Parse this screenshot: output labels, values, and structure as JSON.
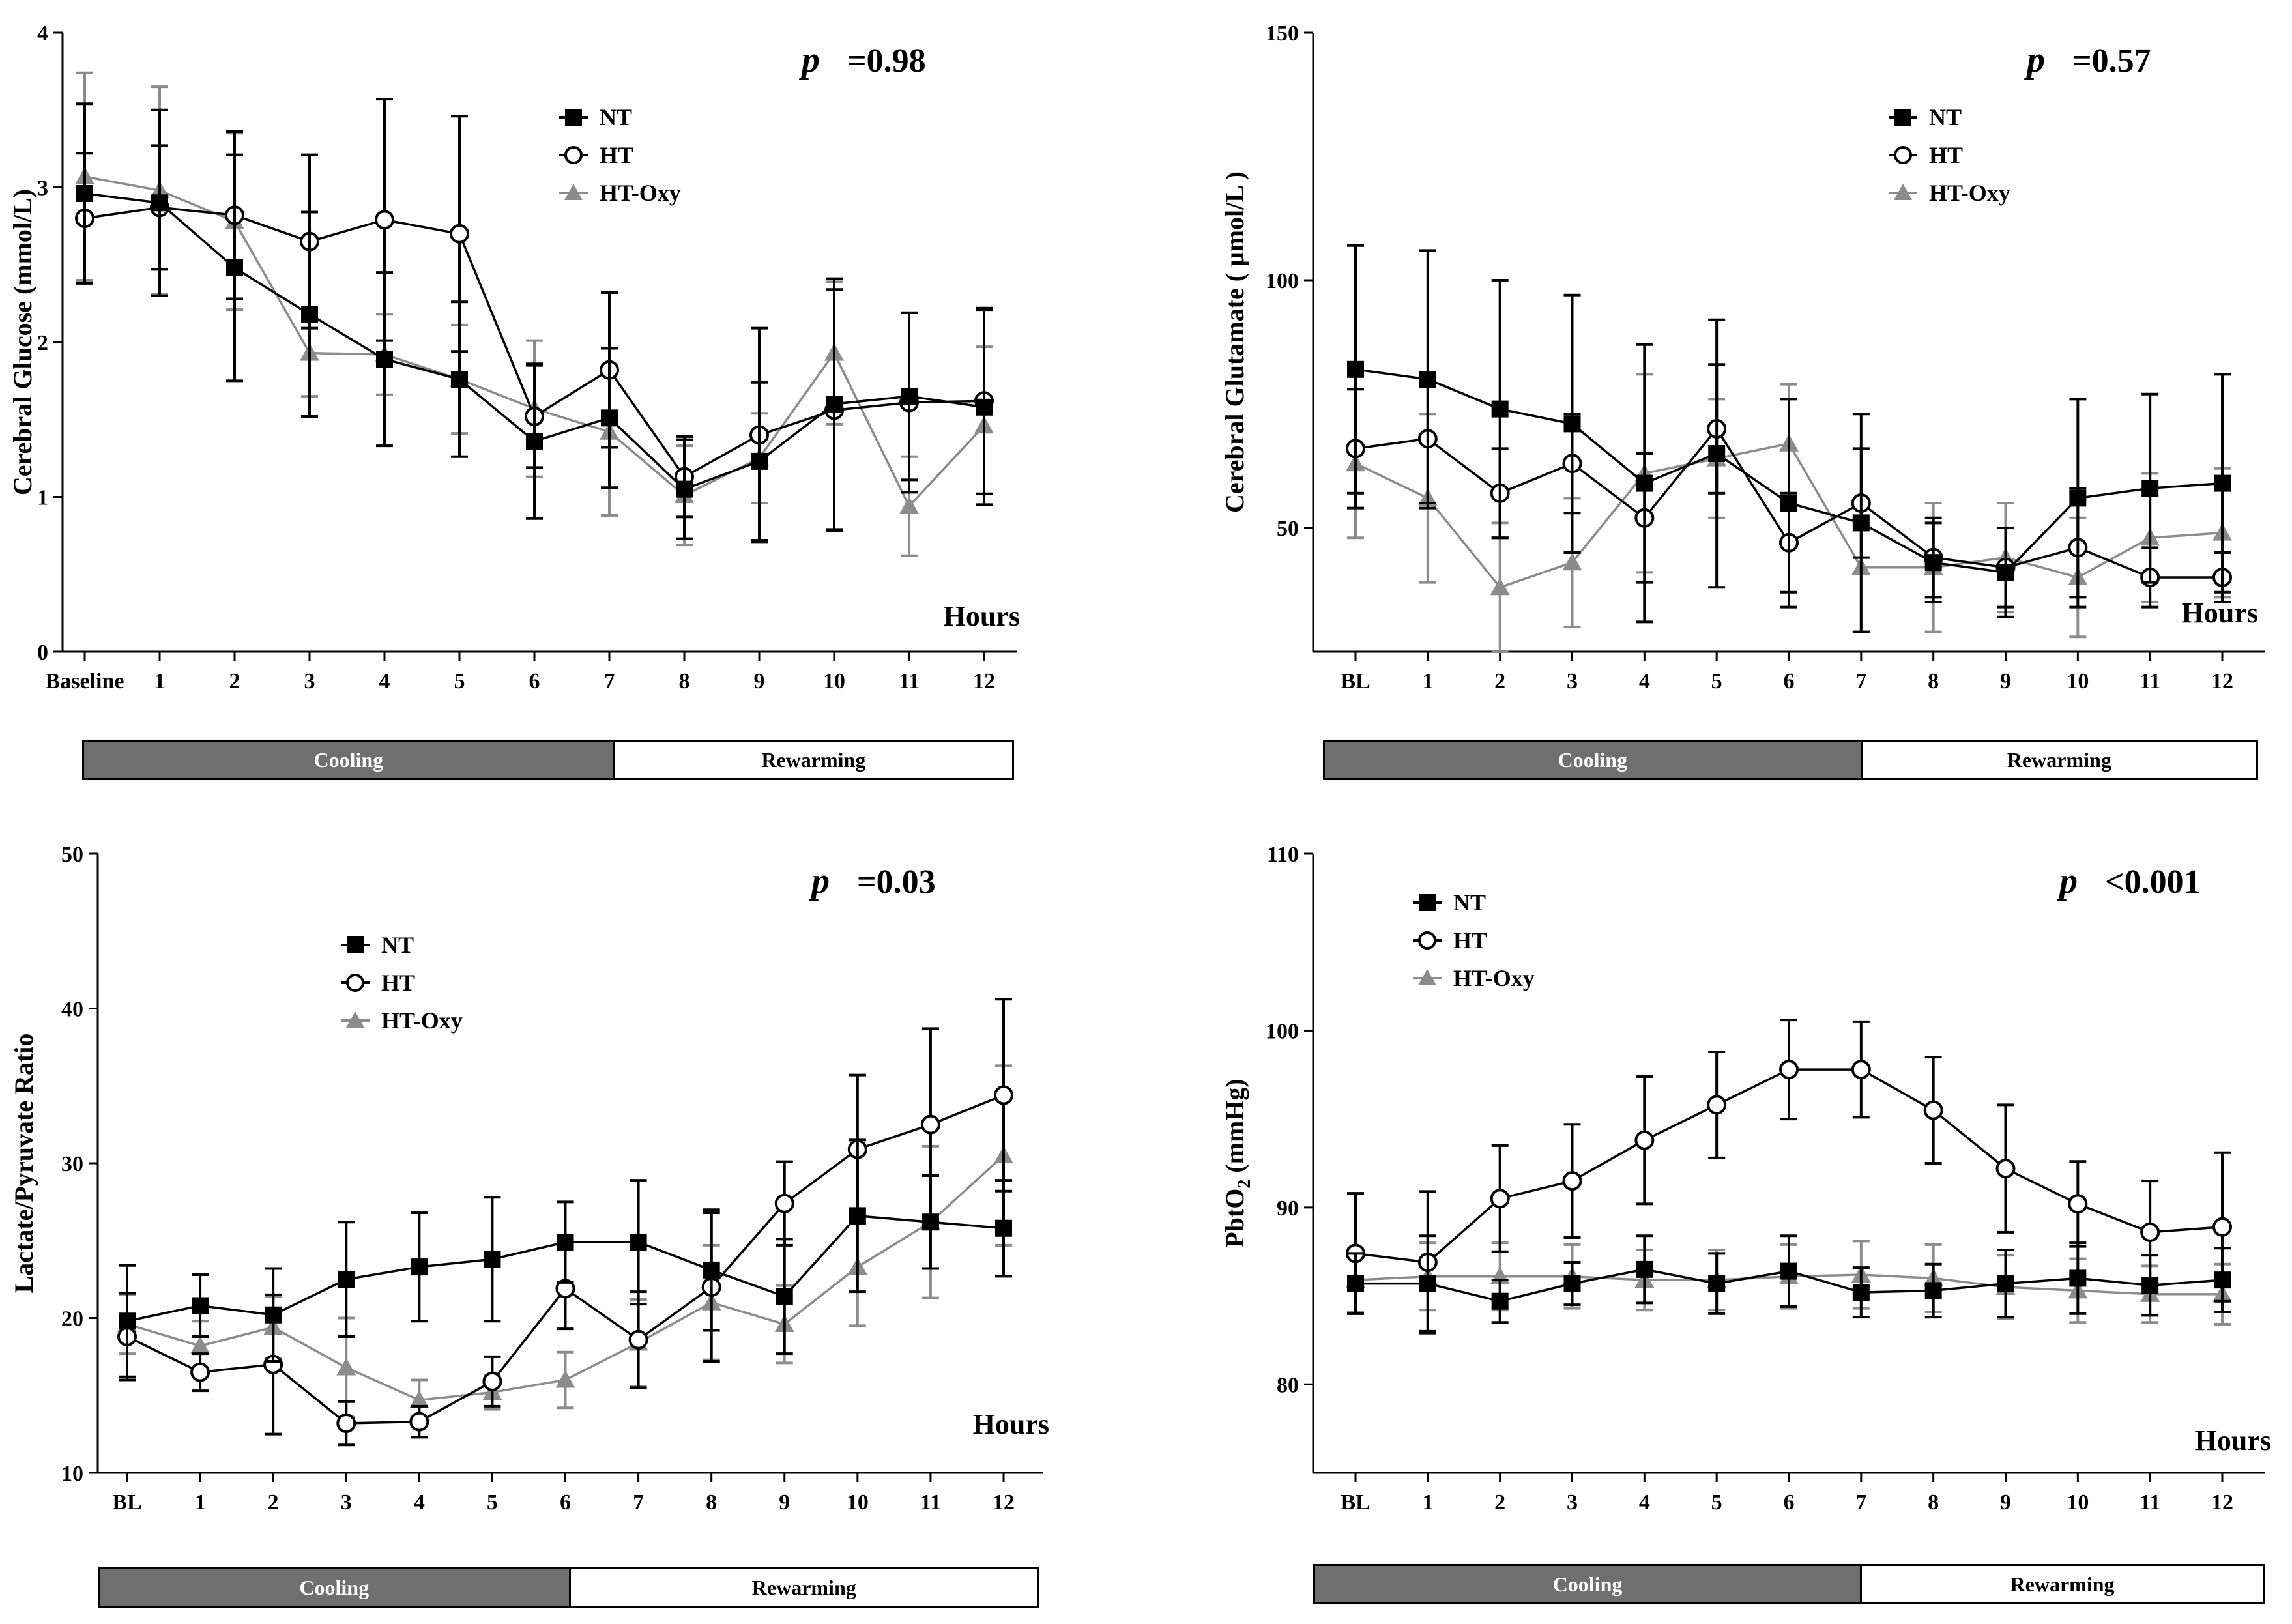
{
  "colors": {
    "NT": "#000000",
    "HT": "#000000",
    "HT-Oxy": "#8c8c8c",
    "cooling": "#6f6f6f"
  },
  "phases": {
    "cooling": "Cooling",
    "rewarming": "Rewarming"
  },
  "chart_data": [
    {
      "type": "line",
      "ylabel": "Cerebral Glucose (mmol/L)",
      "xlabel": "Hours",
      "p_label": "p",
      "p_value": "=0.98",
      "ylim": [
        0,
        4
      ],
      "yticks": [
        "0",
        "1",
        "2",
        "3",
        "4"
      ],
      "categories": [
        "Baseline",
        "1",
        "2",
        "3",
        "4",
        "5",
        "6",
        "7",
        "8",
        "9",
        "10",
        "11",
        "12"
      ],
      "cooling_until": "7",
      "series": [
        {
          "name": "NT",
          "marker": "square",
          "values": [
            2.96,
            2.9,
            2.48,
            2.18,
            1.89,
            1.76,
            1.36,
            1.51,
            1.05,
            1.23,
            1.6,
            1.65,
            1.58
          ],
          "errors": [
            0.58,
            0.6,
            0.73,
            0.66,
            0.56,
            0.5,
            0.5,
            0.45,
            0.32,
            0.51,
            0.81,
            0.54,
            0.63
          ]
        },
        {
          "name": "HT",
          "marker": "circle",
          "values": [
            2.8,
            2.87,
            2.82,
            2.65,
            2.79,
            2.7,
            1.52,
            1.82,
            1.13,
            1.4,
            1.56,
            1.61,
            1.62
          ],
          "errors": [
            0.42,
            0.4,
            0.54,
            0.56,
            0.78,
            0.76,
            0.33,
            0.5,
            0.26,
            0.69,
            0.78,
            0.58,
            0.6
          ]
        },
        {
          "name": "HT-Oxy",
          "marker": "triangle",
          "values": [
            3.07,
            2.98,
            2.78,
            1.93,
            1.92,
            1.76,
            1.57,
            1.42,
            1.01,
            1.25,
            1.93,
            0.94,
            1.46
          ],
          "errors": [
            0.67,
            0.67,
            0.57,
            0.28,
            0.26,
            0.35,
            0.44,
            0.54,
            0.32,
            0.29,
            0.46,
            0.32,
            0.51
          ]
        }
      ]
    },
    {
      "type": "line",
      "ylabel": "Cerebral Glutamate ( μmol/L )",
      "xlabel": "Hours",
      "p_label": "p",
      "p_value": "=0.57",
      "ylim": [
        25,
        150
      ],
      "yticks": [
        "50",
        "100",
        "150"
      ],
      "ytick_values": [
        50,
        100,
        150
      ],
      "categories": [
        "BL",
        "1",
        "2",
        "3",
        "4",
        "5",
        "6",
        "7",
        "8",
        "9",
        "10",
        "11",
        "12"
      ],
      "cooling_until": "7",
      "series": [
        {
          "name": "NT",
          "marker": "square",
          "values": [
            82,
            80,
            74,
            71,
            59,
            65,
            55,
            51,
            43,
            41,
            56,
            58,
            59
          ],
          "errors": [
            25,
            26,
            26,
            26,
            28,
            27,
            21,
            22,
            8,
            9,
            20,
            19,
            22
          ]
        },
        {
          "name": "HT",
          "marker": "circle",
          "values": [
            66,
            68,
            57,
            63,
            52,
            70,
            47,
            55,
            44,
            42,
            46,
            40,
            40
          ],
          "errors": [
            12,
            13,
            9,
            10,
            13,
            13,
            10,
            11,
            8,
            8,
            12,
            6,
            5
          ]
        },
        {
          "name": "HT-Oxy",
          "marker": "triangle",
          "values": [
            63,
            56,
            38,
            43,
            61,
            64,
            67,
            42,
            42,
            44,
            40,
            48,
            49
          ],
          "errors": [
            15,
            17,
            13,
            13,
            20,
            12,
            12,
            13,
            13,
            11,
            12,
            13,
            13
          ]
        }
      ]
    },
    {
      "type": "line",
      "ylabel": "Lactate/Pyruvate Ratio",
      "xlabel": "Hours",
      "p_label": "p",
      "p_value": "=0.03",
      "ylim": [
        10,
        50
      ],
      "yticks": [
        "10",
        "20",
        "30",
        "40",
        "50"
      ],
      "categories": [
        "BL",
        "1",
        "2",
        "3",
        "4",
        "5",
        "6",
        "7",
        "8",
        "9",
        "10",
        "11",
        "12"
      ],
      "cooling_until": "7",
      "series": [
        {
          "name": "NT",
          "marker": "square",
          "values": [
            19.8,
            20.8,
            20.2,
            22.5,
            23.3,
            23.8,
            24.9,
            24.9,
            23.1,
            21.4,
            26.6,
            26.2,
            25.8
          ],
          "errors": [
            3.6,
            2.0,
            3.0,
            3.7,
            3.5,
            4.0,
            2.6,
            4.0,
            3.9,
            3.7,
            4.9,
            3.0,
            3.1
          ]
        },
        {
          "name": "HT",
          "marker": "circle",
          "values": [
            18.8,
            16.5,
            17.0,
            13.2,
            13.3,
            15.9,
            21.9,
            18.6,
            22.0,
            27.4,
            30.9,
            32.5,
            34.4
          ],
          "errors": [
            2.8,
            1.2,
            4.5,
            1.4,
            1.0,
            1.6,
            2.6,
            3.1,
            4.8,
            2.7,
            4.8,
            6.2,
            6.2
          ]
        },
        {
          "name": "HT-Oxy",
          "marker": "triangle",
          "values": [
            19.6,
            18.2,
            19.4,
            16.8,
            14.7,
            15.2,
            16.0,
            18.4,
            21.0,
            19.6,
            23.3,
            26.2,
            30.5
          ],
          "errors": [
            1.9,
            1.6,
            2.0,
            3.2,
            1.3,
            1.1,
            1.8,
            2.8,
            3.7,
            2.5,
            3.8,
            4.9,
            5.8
          ]
        }
      ]
    },
    {
      "type": "line",
      "ylabel": "PbtO",
      "ylabel_sub": "2",
      "ylabel_unit": " (mmHg)",
      "xlabel": "Hours",
      "p_label": "p",
      "p_value": "<0.001",
      "ylim": [
        75,
        110
      ],
      "yticks": [
        "80",
        "90",
        "100",
        "110"
      ],
      "ytick_values": [
        80,
        90,
        100,
        110
      ],
      "categories": [
        "BL",
        "1",
        "2",
        "3",
        "4",
        "5",
        "6",
        "7",
        "8",
        "9",
        "10",
        "11",
        "12"
      ],
      "cooling_until": "7",
      "series": [
        {
          "name": "NT",
          "marker": "square",
          "values": [
            85.7,
            85.7,
            84.7,
            85.7,
            86.5,
            85.7,
            86.4,
            85.2,
            85.3,
            85.7,
            86.0,
            85.6,
            85.9
          ],
          "errors": [
            1.7,
            2.7,
            1.2,
            1.2,
            1.9,
            1.7,
            2.0,
            1.4,
            1.5,
            1.9,
            2.0,
            1.7,
            1.8
          ]
        },
        {
          "name": "HT",
          "marker": "circle",
          "values": [
            87.4,
            86.9,
            90.5,
            91.5,
            93.8,
            95.8,
            97.8,
            97.8,
            95.5,
            92.2,
            90.2,
            88.6,
            88.9
          ],
          "errors": [
            3.4,
            4.0,
            3.0,
            3.2,
            3.6,
            3.0,
            2.8,
            2.7,
            3.0,
            3.6,
            2.4,
            2.9,
            4.2
          ]
        },
        {
          "name": "HT-Oxy",
          "marker": "triangle",
          "values": [
            85.9,
            86.1,
            86.1,
            86.1,
            85.9,
            85.9,
            86.1,
            86.2,
            86.0,
            85.5,
            85.3,
            85.1,
            85.1
          ],
          "errors": [
            1.8,
            1.9,
            1.9,
            1.8,
            1.7,
            1.7,
            1.8,
            1.9,
            1.9,
            1.8,
            1.8,
            1.6,
            1.7
          ]
        }
      ]
    }
  ]
}
